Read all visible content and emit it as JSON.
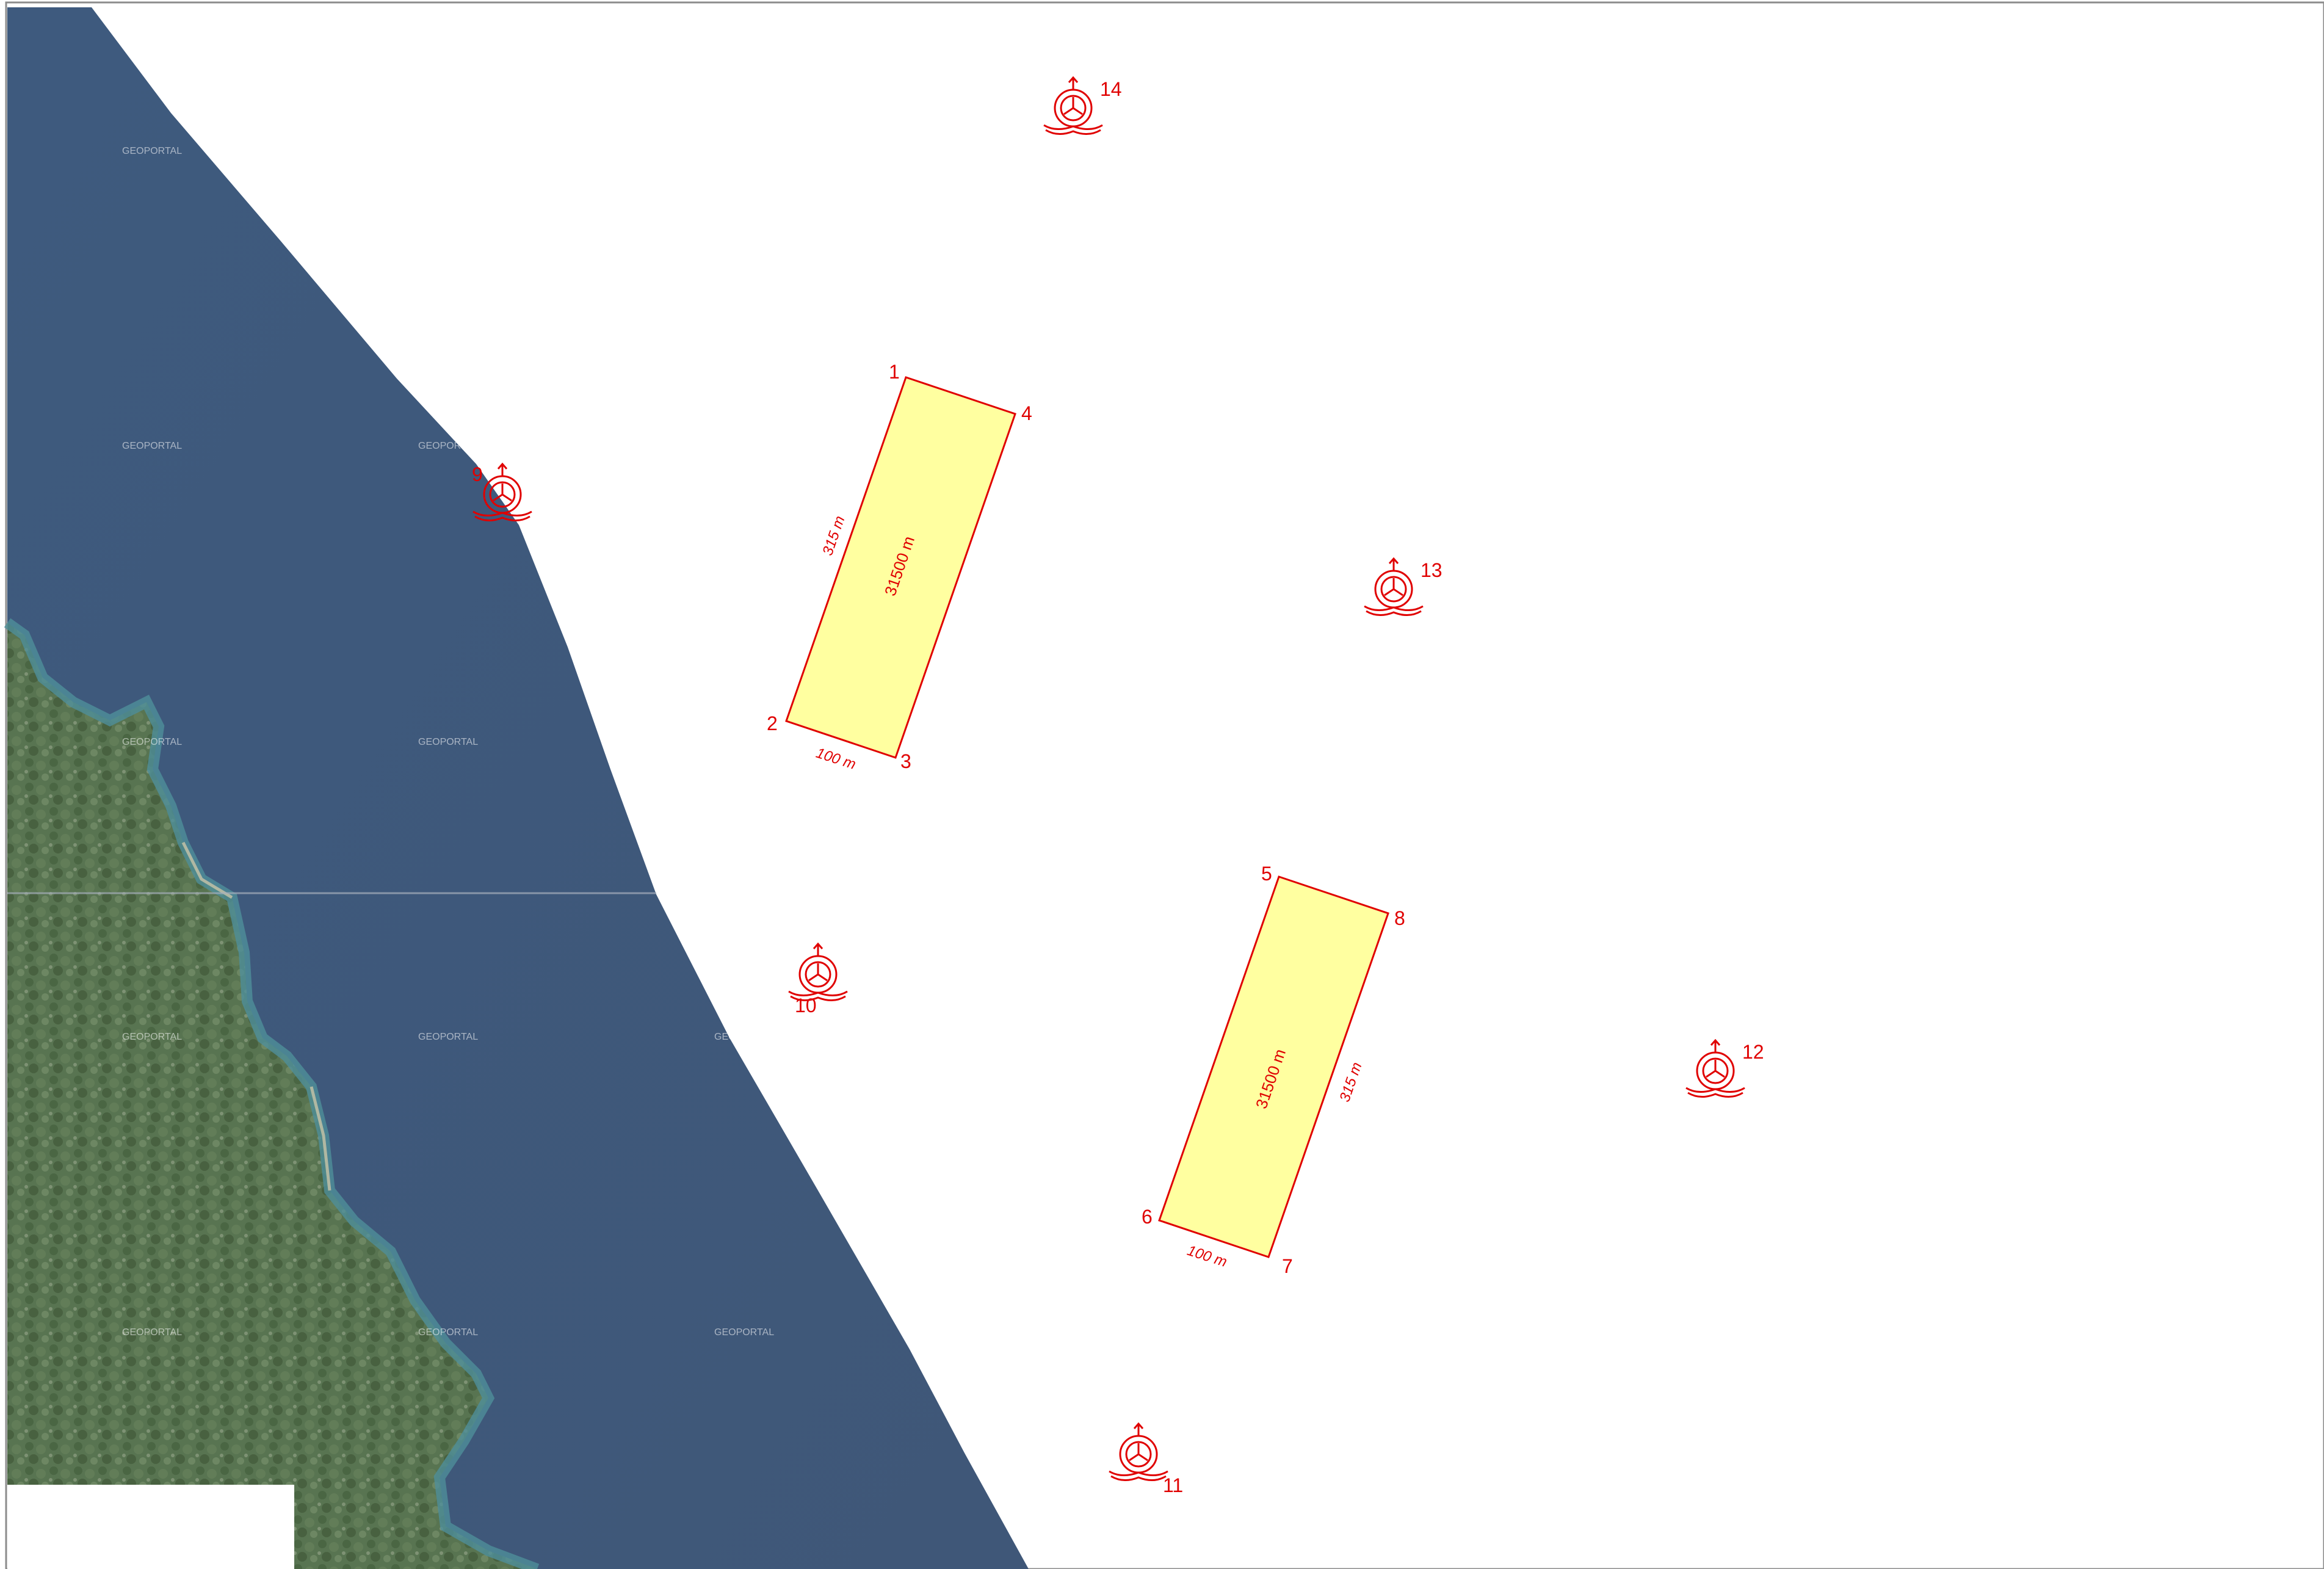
{
  "map": {
    "watermark_text": "GEOPORTAL",
    "colors": {
      "sea": "#40587a",
      "land": "#55704a",
      "shallow": "#4f8f9a",
      "plot_fill": "#ffffa0",
      "annotation": "#e00000"
    },
    "plots": [
      {
        "corners": [
          "1",
          "4",
          "3",
          "2"
        ],
        "area": "31500 m",
        "side_long": "315 m",
        "side_short": "100 m"
      },
      {
        "corners": [
          "5",
          "8",
          "7",
          "6"
        ],
        "area": "31500 m",
        "side_long": "315 m",
        "side_short": "100 m"
      }
    ],
    "markers": [
      {
        "label": "9",
        "icon": "buoy-symbol-icon"
      },
      {
        "label": "10",
        "icon": "buoy-symbol-icon"
      },
      {
        "label": "11",
        "icon": "buoy-symbol-icon"
      },
      {
        "label": "12",
        "icon": "buoy-symbol-icon"
      },
      {
        "label": "13",
        "icon": "buoy-symbol-icon"
      },
      {
        "label": "14",
        "icon": "buoy-symbol-icon"
      }
    ]
  }
}
